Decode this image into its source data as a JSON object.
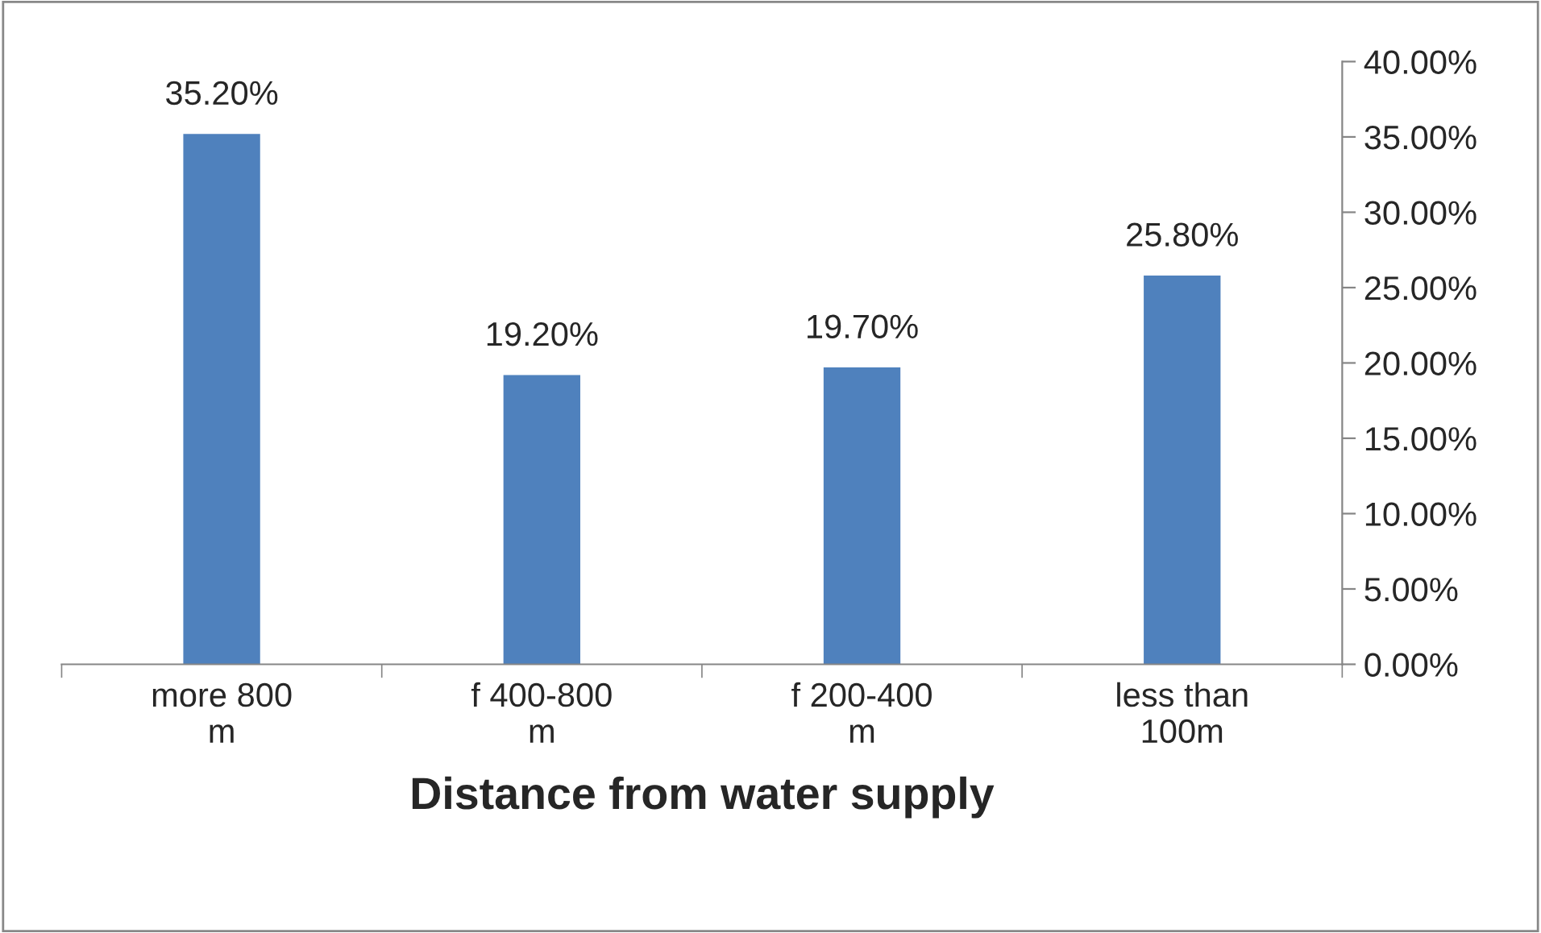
{
  "chart_data": {
    "type": "bar",
    "xlabel": "Distance from water supply",
    "categories": [
      "more 800 m",
      "f 400-800 m",
      "f 200-400 m",
      "less than 100m"
    ],
    "values": [
      35.2,
      19.2,
      19.7,
      25.8
    ],
    "value_labels": [
      "35.20%",
      "19.20%",
      "19.70%",
      "25.80%"
    ],
    "color": "#4f81bd",
    "ylim": [
      0,
      40
    ],
    "yticks": [
      {
        "value": 0,
        "label": "0.00%"
      },
      {
        "value": 5,
        "label": "5.00%"
      },
      {
        "value": 10,
        "label": "10.00%"
      },
      {
        "value": 15,
        "label": "15.00%"
      },
      {
        "value": 20,
        "label": "20.00%"
      },
      {
        "value": 25,
        "label": "25.00%"
      },
      {
        "value": 30,
        "label": "30.00%"
      },
      {
        "value": 35,
        "label": "35.00%"
      },
      {
        "value": 40,
        "label": "40.00%"
      }
    ],
    "grid": false
  }
}
